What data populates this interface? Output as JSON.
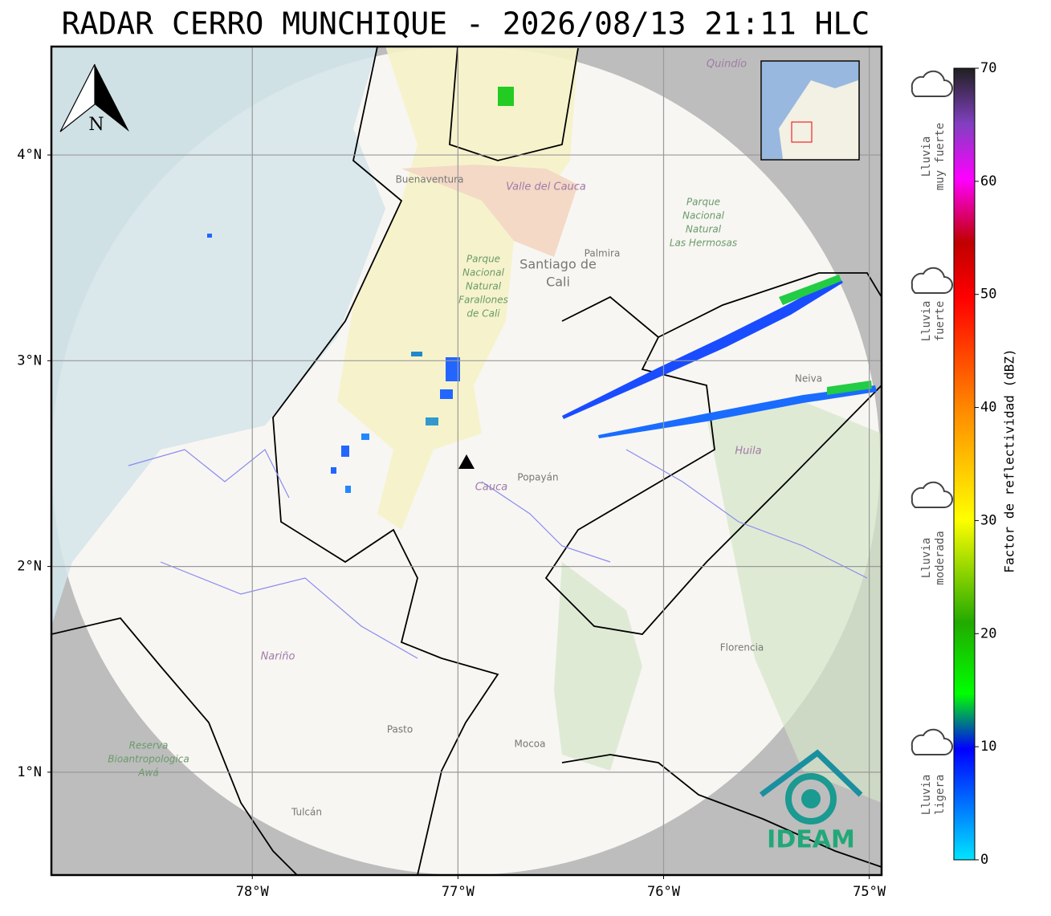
{
  "title": "RADAR CERRO MUNCHIQUE - 2026/08/13 21:11 HLC",
  "map": {
    "lonlim": [
      -78.977,
      -74.94
    ],
    "latlim": [
      0.5,
      4.527
    ],
    "lon_ticks": [
      {
        "value": -78,
        "label": "78°W"
      },
      {
        "value": -77,
        "label": "77°W"
      },
      {
        "value": -76,
        "label": "76°W"
      },
      {
        "value": -75,
        "label": "75°W"
      }
    ],
    "lat_ticks": [
      {
        "value": 4,
        "label": "4°N"
      },
      {
        "value": 3,
        "label": "3°N"
      },
      {
        "value": 2,
        "label": "2°N"
      },
      {
        "value": 1,
        "label": "1°N"
      }
    ],
    "north": "N",
    "logo": "IDEAM",
    "places": [
      "Buenaventura",
      "Valle del Cauca",
      "Palmira",
      "Santiago de",
      "Cali",
      "Parque",
      "Nacional",
      "Natural",
      "Las Hermosas",
      "Farallones",
      "de Cali",
      "Popayán",
      "Cauca",
      "Neiva",
      "Huila",
      "Nariño",
      "Pasto",
      "Mocoa",
      "Florencia",
      "Tulcán",
      "Reserva",
      "Bioantropologica",
      "Awá",
      "Quindío"
    ]
  },
  "colorbar": {
    "label": "Factor de reflectividad (dBZ)",
    "lim": [
      0,
      70
    ],
    "ticks": [
      0,
      10,
      20,
      30,
      40,
      50,
      60,
      70
    ]
  },
  "legend": [
    {
      "lines": [
        "Lluvia",
        "muy fuerte"
      ]
    },
    {
      "lines": [
        "Lluvia",
        "fuerte"
      ]
    },
    {
      "lines": [
        "Lluvia",
        "moderada"
      ]
    },
    {
      "lines": [
        "Lluvia",
        "ligera"
      ]
    }
  ]
}
